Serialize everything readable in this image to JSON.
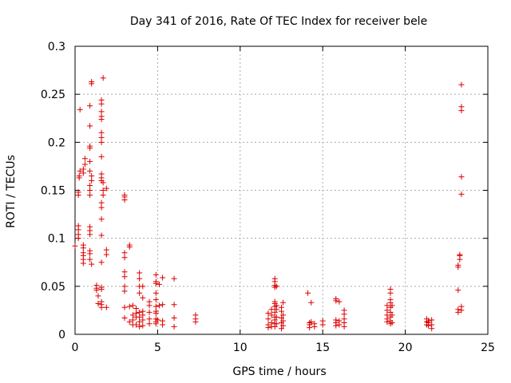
{
  "chart_data": {
    "type": "scatter",
    "title": "Day 341 of 2016, Rate Of TEC Index for receiver bele",
    "xlabel": "GPS time / hours",
    "ylabel": "ROTI / TECUs",
    "xlim": [
      0,
      25
    ],
    "ylim": [
      0,
      0.3
    ],
    "xticks": [
      0,
      5,
      10,
      15,
      20,
      25
    ],
    "xtick_labels": [
      "0",
      "5",
      "10",
      "15",
      "20",
      "25"
    ],
    "yticks": [
      0,
      0.05,
      0.1,
      0.15,
      0.2,
      0.25,
      0.3
    ],
    "ytick_labels": [
      "0",
      "0.05",
      "0.1",
      "0.15",
      "0.2",
      "0.25",
      "0.3"
    ],
    "grid": true,
    "marker": "plus",
    "colors": {
      "series": "#dd0000",
      "grid": "#aaaaaa",
      "axis": "#000000"
    },
    "series": [
      {
        "name": "ROTI",
        "points": [
          [
            0.0,
            0.092
          ],
          [
            0.2,
            0.1
          ],
          [
            0.2,
            0.104
          ],
          [
            0.2,
            0.109
          ],
          [
            0.2,
            0.113
          ],
          [
            0.2,
            0.145
          ],
          [
            0.2,
            0.148
          ],
          [
            0.25,
            0.163
          ],
          [
            0.25,
            0.165
          ],
          [
            0.3,
            0.17
          ],
          [
            0.3,
            0.234
          ],
          [
            0.5,
            0.074
          ],
          [
            0.5,
            0.078
          ],
          [
            0.5,
            0.082
          ],
          [
            0.5,
            0.085
          ],
          [
            0.5,
            0.09
          ],
          [
            0.5,
            0.093
          ],
          [
            0.5,
            0.168
          ],
          [
            0.5,
            0.172
          ],
          [
            0.6,
            0.177
          ],
          [
            0.6,
            0.183
          ],
          [
            0.9,
            0.078
          ],
          [
            0.9,
            0.084
          ],
          [
            0.9,
            0.087
          ],
          [
            0.9,
            0.104
          ],
          [
            0.9,
            0.108
          ],
          [
            0.9,
            0.112
          ],
          [
            0.9,
            0.145
          ],
          [
            0.9,
            0.15
          ],
          [
            0.9,
            0.155
          ],
          [
            0.9,
            0.17
          ],
          [
            0.9,
            0.18
          ],
          [
            0.9,
            0.194
          ],
          [
            0.9,
            0.196
          ],
          [
            0.9,
            0.217
          ],
          [
            0.9,
            0.238
          ],
          [
            1.0,
            0.261
          ],
          [
            1.0,
            0.263
          ],
          [
            1.0,
            0.165
          ],
          [
            1.0,
            0.16
          ],
          [
            1.0,
            0.073
          ],
          [
            1.3,
            0.048
          ],
          [
            1.3,
            0.051
          ],
          [
            1.3,
            0.046
          ],
          [
            1.4,
            0.032
          ],
          [
            1.4,
            0.04
          ],
          [
            1.6,
            0.028
          ],
          [
            1.6,
            0.031
          ],
          [
            1.6,
            0.034
          ],
          [
            1.6,
            0.047
          ],
          [
            1.6,
            0.049
          ],
          [
            1.6,
            0.075
          ],
          [
            1.6,
            0.103
          ],
          [
            1.6,
            0.12
          ],
          [
            1.6,
            0.132
          ],
          [
            1.6,
            0.137
          ],
          [
            1.6,
            0.16
          ],
          [
            1.6,
            0.163
          ],
          [
            1.6,
            0.167
          ],
          [
            1.6,
            0.185
          ],
          [
            1.6,
            0.2
          ],
          [
            1.6,
            0.205
          ],
          [
            1.6,
            0.21
          ],
          [
            1.6,
            0.224
          ],
          [
            1.6,
            0.227
          ],
          [
            1.6,
            0.232
          ],
          [
            1.6,
            0.24
          ],
          [
            1.6,
            0.244
          ],
          [
            1.7,
            0.267
          ],
          [
            1.7,
            0.158
          ],
          [
            1.7,
            0.15
          ],
          [
            1.7,
            0.145
          ],
          [
            1.9,
            0.028
          ],
          [
            1.9,
            0.083
          ],
          [
            1.9,
            0.088
          ],
          [
            1.9,
            0.152
          ],
          [
            3.0,
            0.017
          ],
          [
            3.0,
            0.028
          ],
          [
            3.0,
            0.045
          ],
          [
            3.0,
            0.05
          ],
          [
            3.0,
            0.06
          ],
          [
            3.0,
            0.065
          ],
          [
            3.0,
            0.08
          ],
          [
            3.0,
            0.085
          ],
          [
            3.0,
            0.14
          ],
          [
            3.0,
            0.143
          ],
          [
            3.0,
            0.145
          ],
          [
            3.3,
            0.013
          ],
          [
            3.3,
            0.029
          ],
          [
            3.3,
            0.091
          ],
          [
            3.3,
            0.093
          ],
          [
            3.5,
            0.01
          ],
          [
            3.5,
            0.015
          ],
          [
            3.5,
            0.02
          ],
          [
            3.5,
            0.03
          ],
          [
            3.7,
            0.01
          ],
          [
            3.7,
            0.018
          ],
          [
            3.7,
            0.022
          ],
          [
            3.7,
            0.027
          ],
          [
            3.9,
            0.008
          ],
          [
            3.9,
            0.013
          ],
          [
            3.9,
            0.018
          ],
          [
            3.9,
            0.023
          ],
          [
            3.9,
            0.043
          ],
          [
            3.9,
            0.05
          ],
          [
            3.9,
            0.058
          ],
          [
            3.9,
            0.064
          ],
          [
            4.1,
            0.009
          ],
          [
            4.1,
            0.015
          ],
          [
            4.1,
            0.02
          ],
          [
            4.1,
            0.024
          ],
          [
            4.1,
            0.038
          ],
          [
            4.1,
            0.05
          ],
          [
            4.5,
            0.011
          ],
          [
            4.5,
            0.016
          ],
          [
            4.5,
            0.023
          ],
          [
            4.5,
            0.03
          ],
          [
            4.5,
            0.034
          ],
          [
            4.9,
            0.011
          ],
          [
            4.9,
            0.013
          ],
          [
            4.9,
            0.016
          ],
          [
            4.9,
            0.022
          ],
          [
            4.9,
            0.024
          ],
          [
            4.9,
            0.029
          ],
          [
            4.9,
            0.036
          ],
          [
            4.9,
            0.043
          ],
          [
            4.9,
            0.053
          ],
          [
            4.9,
            0.055
          ],
          [
            4.9,
            0.062
          ],
          [
            5.0,
            0.015
          ],
          [
            5.1,
            0.052
          ],
          [
            5.1,
            0.03
          ],
          [
            5.3,
            0.01
          ],
          [
            5.3,
            0.014
          ],
          [
            5.3,
            0.031
          ],
          [
            5.3,
            0.059
          ],
          [
            6.0,
            0.008
          ],
          [
            6.0,
            0.017
          ],
          [
            6.0,
            0.031
          ],
          [
            6.0,
            0.058
          ],
          [
            7.3,
            0.013
          ],
          [
            7.3,
            0.016
          ],
          [
            7.3,
            0.02
          ],
          [
            11.7,
            0.007
          ],
          [
            11.7,
            0.01
          ],
          [
            11.7,
            0.016
          ],
          [
            11.7,
            0.022
          ],
          [
            11.9,
            0.008
          ],
          [
            11.9,
            0.012
          ],
          [
            11.9,
            0.02
          ],
          [
            11.9,
            0.026
          ],
          [
            12.1,
            0.008
          ],
          [
            12.1,
            0.011
          ],
          [
            12.1,
            0.015
          ],
          [
            12.1,
            0.018
          ],
          [
            12.1,
            0.023
          ],
          [
            12.1,
            0.029
          ],
          [
            12.1,
            0.032
          ],
          [
            12.1,
            0.034
          ],
          [
            12.1,
            0.049
          ],
          [
            12.1,
            0.051
          ],
          [
            12.1,
            0.055
          ],
          [
            12.1,
            0.058
          ],
          [
            12.2,
            0.011
          ],
          [
            12.2,
            0.018
          ],
          [
            12.2,
            0.026
          ],
          [
            12.2,
            0.03
          ],
          [
            12.2,
            0.05
          ],
          [
            12.5,
            0.006
          ],
          [
            12.5,
            0.012
          ],
          [
            12.5,
            0.017
          ],
          [
            12.5,
            0.024
          ],
          [
            12.5,
            0.028
          ],
          [
            12.6,
            0.009
          ],
          [
            12.6,
            0.014
          ],
          [
            12.6,
            0.02
          ],
          [
            12.6,
            0.033
          ],
          [
            14.1,
            0.043
          ],
          [
            14.2,
            0.007
          ],
          [
            14.2,
            0.01
          ],
          [
            14.2,
            0.012
          ],
          [
            14.3,
            0.013
          ],
          [
            14.3,
            0.033
          ],
          [
            14.5,
            0.008
          ],
          [
            14.5,
            0.011
          ],
          [
            15.0,
            0.01
          ],
          [
            15.0,
            0.014
          ],
          [
            15.8,
            0.009
          ],
          [
            15.8,
            0.012
          ],
          [
            15.8,
            0.015
          ],
          [
            15.8,
            0.035
          ],
          [
            15.8,
            0.037
          ],
          [
            16.0,
            0.01
          ],
          [
            16.0,
            0.014
          ],
          [
            16.0,
            0.034
          ],
          [
            16.3,
            0.008
          ],
          [
            16.3,
            0.012
          ],
          [
            16.3,
            0.016
          ],
          [
            16.3,
            0.021
          ],
          [
            16.3,
            0.025
          ],
          [
            18.9,
            0.013
          ],
          [
            18.9,
            0.016
          ],
          [
            18.9,
            0.02
          ],
          [
            18.9,
            0.025
          ],
          [
            18.9,
            0.03
          ],
          [
            19.1,
            0.011
          ],
          [
            19.1,
            0.014
          ],
          [
            19.1,
            0.018
          ],
          [
            19.1,
            0.023
          ],
          [
            19.1,
            0.028
          ],
          [
            19.1,
            0.033
          ],
          [
            19.1,
            0.036
          ],
          [
            19.1,
            0.043
          ],
          [
            19.1,
            0.047
          ],
          [
            19.2,
            0.012
          ],
          [
            19.2,
            0.02
          ],
          [
            19.2,
            0.03
          ],
          [
            21.3,
            0.01
          ],
          [
            21.3,
            0.013
          ],
          [
            21.3,
            0.016
          ],
          [
            21.4,
            0.009
          ],
          [
            21.4,
            0.012
          ],
          [
            21.4,
            0.014
          ],
          [
            21.6,
            0.006
          ],
          [
            21.6,
            0.01
          ],
          [
            21.6,
            0.015
          ],
          [
            23.2,
            0.023
          ],
          [
            23.2,
            0.026
          ],
          [
            23.2,
            0.046
          ],
          [
            23.2,
            0.072
          ],
          [
            23.2,
            0.07
          ],
          [
            23.3,
            0.078
          ],
          [
            23.3,
            0.083
          ],
          [
            23.3,
            0.082
          ],
          [
            23.4,
            0.025
          ],
          [
            23.4,
            0.029
          ],
          [
            23.4,
            0.146
          ],
          [
            23.4,
            0.164
          ],
          [
            23.4,
            0.233
          ],
          [
            23.4,
            0.237
          ],
          [
            23.4,
            0.26
          ]
        ]
      }
    ]
  }
}
